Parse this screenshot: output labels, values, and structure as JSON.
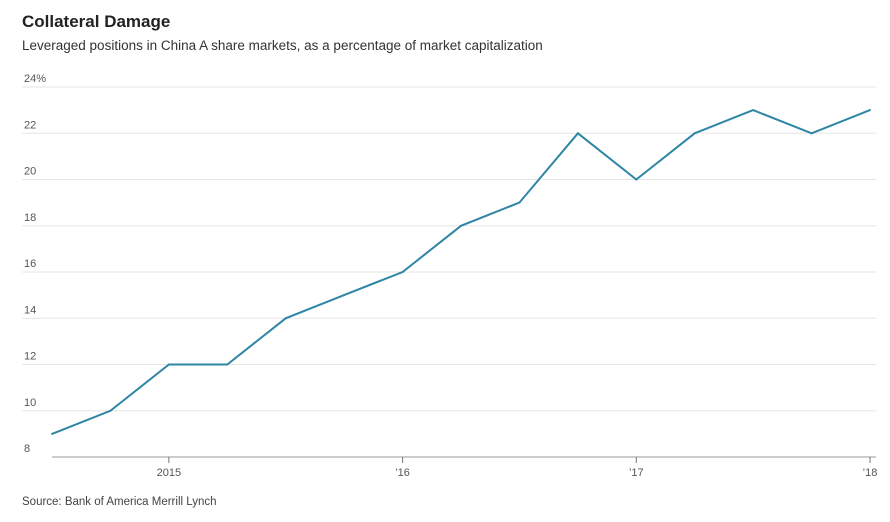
{
  "chart_data": {
    "type": "line",
    "title": "Collateral Damage",
    "subtitle": "Leveraged positions in China A share markets, as a percentage of market capitalization",
    "source": "Source: Bank of America Merrill Lynch",
    "xlabel": "",
    "ylabel": "",
    "ylim": [
      8,
      24
    ],
    "y_ticks": [
      {
        "value": 24,
        "label": "24%"
      },
      {
        "value": 22,
        "label": "22"
      },
      {
        "value": 20,
        "label": "20"
      },
      {
        "value": 18,
        "label": "18"
      },
      {
        "value": 16,
        "label": "16"
      },
      {
        "value": 14,
        "label": "14"
      },
      {
        "value": 12,
        "label": "12"
      },
      {
        "value": 10,
        "label": "10"
      },
      {
        "value": 8,
        "label": "8"
      }
    ],
    "xlim": [
      2014.5,
      2018.0
    ],
    "x_ticks": [
      {
        "value": 2015,
        "label": "2015"
      },
      {
        "value": 2016,
        "label": "’16"
      },
      {
        "value": 2017,
        "label": "’17"
      },
      {
        "value": 2018,
        "label": "’18"
      }
    ],
    "grid": true,
    "series": [
      {
        "color": "#2e86a5",
        "points": [
          {
            "x": 2014.5,
            "y": 9.0
          },
          {
            "x": 2014.75,
            "y": 10.0
          },
          {
            "x": 2015.0,
            "y": 12.0
          },
          {
            "x": 2015.25,
            "y": 12.0
          },
          {
            "x": 2015.5,
            "y": 14.0
          },
          {
            "x": 2015.75,
            "y": 15.0
          },
          {
            "x": 2016.0,
            "y": 16.0
          },
          {
            "x": 2016.25,
            "y": 18.0
          },
          {
            "x": 2016.5,
            "y": 19.0
          },
          {
            "x": 2016.75,
            "y": 22.0
          },
          {
            "x": 2017.0,
            "y": 20.0
          },
          {
            "x": 2017.25,
            "y": 22.0
          },
          {
            "x": 2017.5,
            "y": 23.0
          },
          {
            "x": 2017.75,
            "y": 22.0
          },
          {
            "x": 2018.0,
            "y": 23.0
          }
        ]
      }
    ]
  }
}
